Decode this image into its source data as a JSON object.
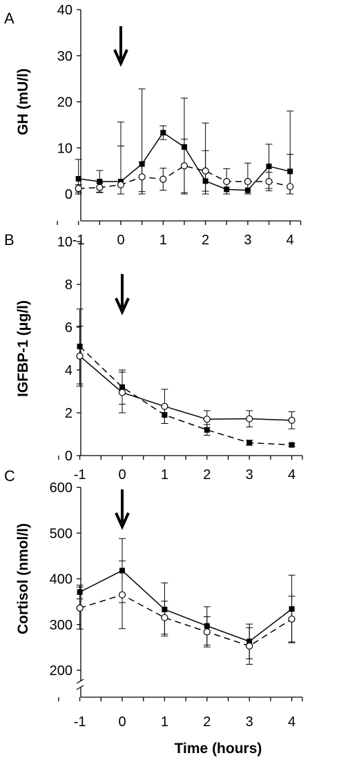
{
  "figure": {
    "xlabel": "Time (hours)"
  },
  "chart_data": [
    {
      "panel": "A",
      "type": "line",
      "ylabel": "GH (mU/l)",
      "ylim": [
        0,
        40
      ],
      "yticks": [
        "0",
        "10",
        "20",
        "30",
        "40"
      ],
      "xlim": [
        -1.25,
        4.25
      ],
      "xticks": [
        -1,
        0,
        1,
        2,
        3,
        4
      ],
      "xtick_labels": [
        "-1",
        "0",
        "1",
        "2",
        "3",
        "4"
      ],
      "arrow_at_x": 0,
      "series": [
        {
          "marker": "filled-square",
          "line": "solid",
          "x": [
            -1,
            -0.5,
            0,
            0.5,
            1,
            1.5,
            2,
            2.5,
            3,
            3.5,
            4
          ],
          "y": [
            3.3,
            2.7,
            2.7,
            6.5,
            13.3,
            10.2,
            2.8,
            1.0,
            0.8,
            6.0,
            4.9
          ],
          "err": [
            4.2,
            2.4,
            12.9,
            16.3,
            1.5,
            10.6,
            12.6,
            0,
            0,
            4.8,
            13.1
          ]
        },
        {
          "marker": "open-circle",
          "line": "dashed",
          "x": [
            -1,
            -0.5,
            0,
            0.5,
            1,
            1.5,
            2,
            2.5,
            3,
            3.5,
            4
          ],
          "y": [
            1.2,
            1.4,
            2.0,
            3.7,
            3.2,
            6.1,
            5.0,
            2.7,
            2.7,
            2.7,
            1.6
          ],
          "err": [
            0.8,
            1.0,
            8.4,
            3.2,
            2.4,
            5.8,
            4.4,
            2.8,
            4.0,
            2.0,
            7.0
          ]
        }
      ]
    },
    {
      "panel": "B",
      "type": "line",
      "ylabel": "IGFBP-1 (μg/l)",
      "ylim": [
        0,
        10
      ],
      "yticks": [
        "0",
        "2",
        "4",
        "6",
        "8",
        "10"
      ],
      "xlim": [
        -1.3,
        4.25
      ],
      "xticks": [
        -1,
        0,
        1,
        2,
        3,
        4
      ],
      "xtick_labels": [
        "-1",
        "0",
        "1",
        "2",
        "3",
        "4"
      ],
      "arrow_at_x": 0,
      "series": [
        {
          "marker": "filled-square",
          "line": "dashed",
          "x": [
            -1,
            0,
            1,
            2,
            3,
            4
          ],
          "y": [
            5.1,
            3.2,
            1.9,
            1.2,
            0.6,
            0.5
          ],
          "err": [
            1.75,
            0.8,
            0.4,
            0.25,
            0.12,
            0.07
          ]
        },
        {
          "marker": "open-circle",
          "line": "solid",
          "x": [
            -1,
            0,
            1,
            2,
            3,
            4
          ],
          "y": [
            4.65,
            2.95,
            2.3,
            1.7,
            1.72,
            1.65
          ],
          "err": [
            1.4,
            0.95,
            0.8,
            0.4,
            0.38,
            0.4
          ]
        }
      ]
    },
    {
      "panel": "C",
      "type": "line",
      "ylabel": "Cortisol (nmol/l)",
      "ylim": [
        200,
        600
      ],
      "yticks": [
        "200",
        "300",
        "400",
        "500",
        "600"
      ],
      "axis_break": true,
      "xlim": [
        -1.3,
        4.25
      ],
      "xticks": [
        -1,
        0,
        1,
        2,
        3,
        4
      ],
      "xtick_labels": [
        "-1",
        "0",
        "1",
        "2",
        "3",
        "4"
      ],
      "arrow_at_x": 0,
      "series": [
        {
          "marker": "filled-square",
          "line": "solid",
          "x": [
            -1,
            0,
            1,
            2,
            3,
            4
          ],
          "y": [
            371,
            418,
            333,
            297,
            263,
            334
          ],
          "err": [
            15,
            70,
            58,
            42,
            38,
            74
          ]
        },
        {
          "marker": "open-circle",
          "line": "dashed",
          "x": [
            -1,
            0,
            1,
            2,
            3,
            4
          ],
          "y": [
            336,
            365,
            315,
            284,
            253,
            312
          ],
          "err": [
            46,
            74,
            36,
            33,
            40,
            50
          ]
        }
      ]
    }
  ]
}
